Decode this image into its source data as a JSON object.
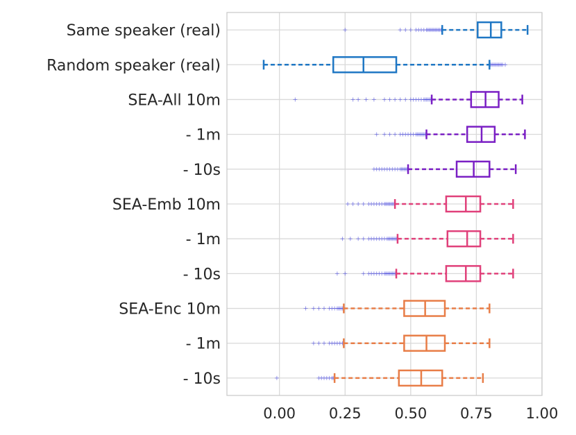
{
  "chart_data": {
    "type": "boxplot",
    "orientation": "horizontal",
    "title": "",
    "xlabel": "",
    "ylabel": "",
    "xlim": [
      -0.2,
      1.0
    ],
    "x_ticks": [
      0.0,
      0.25,
      0.5,
      0.75,
      1.0
    ],
    "x_tick_labels": [
      "0.00",
      "0.25",
      "0.50",
      "0.75",
      "1.00"
    ],
    "grid": true,
    "legend": "none",
    "series": [
      {
        "label": "Same speaker (real)",
        "color": "#1f77c4",
        "whisker_low": 0.62,
        "q1": 0.755,
        "median": 0.805,
        "q3": 0.845,
        "whisker_high": 0.945,
        "outliers": [
          0.25,
          0.46,
          0.48,
          0.5,
          0.52,
          0.53,
          0.54,
          0.55,
          0.56,
          0.565,
          0.57,
          0.575,
          0.58,
          0.585,
          0.59,
          0.595,
          0.6,
          0.605,
          0.61,
          0.615
        ]
      },
      {
        "label": "Random speaker (real)",
        "color": "#1f77c4",
        "whisker_low": -0.06,
        "q1": 0.205,
        "median": 0.32,
        "q3": 0.445,
        "whisker_high": 0.8,
        "outliers": [
          0.805,
          0.81,
          0.815,
          0.82,
          0.825,
          0.83,
          0.835,
          0.84,
          0.845,
          0.85,
          0.86
        ]
      },
      {
        "label": "SEA-All 10m",
        "color": "#7a1fc4",
        "whisker_low": 0.58,
        "q1": 0.73,
        "median": 0.785,
        "q3": 0.835,
        "whisker_high": 0.925,
        "outliers": [
          0.06,
          0.28,
          0.3,
          0.33,
          0.36,
          0.4,
          0.42,
          0.44,
          0.46,
          0.48,
          0.5,
          0.51,
          0.52,
          0.53,
          0.54,
          0.55,
          0.555,
          0.56,
          0.565,
          0.57,
          0.575
        ]
      },
      {
        "label": "-   1m",
        "color": "#7a1fc4",
        "whisker_low": 0.56,
        "q1": 0.715,
        "median": 0.77,
        "q3": 0.82,
        "whisker_high": 0.935,
        "outliers": [
          0.37,
          0.4,
          0.42,
          0.44,
          0.46,
          0.47,
          0.48,
          0.49,
          0.5,
          0.51,
          0.52,
          0.525,
          0.53,
          0.535,
          0.54,
          0.545,
          0.55,
          0.555
        ]
      },
      {
        "label": "-   10s",
        "color": "#7a1fc4",
        "whisker_low": 0.49,
        "q1": 0.675,
        "median": 0.74,
        "q3": 0.8,
        "whisker_high": 0.9,
        "outliers": [
          0.36,
          0.37,
          0.38,
          0.39,
          0.4,
          0.41,
          0.42,
          0.43,
          0.44,
          0.45,
          0.46,
          0.465,
          0.47,
          0.475,
          0.48,
          0.485
        ]
      },
      {
        "label": "SEA-Emb 10m",
        "color": "#e0407a",
        "whisker_low": 0.44,
        "q1": 0.635,
        "median": 0.71,
        "q3": 0.765,
        "whisker_high": 0.89,
        "outliers": [
          0.26,
          0.28,
          0.3,
          0.32,
          0.34,
          0.35,
          0.36,
          0.37,
          0.38,
          0.39,
          0.4,
          0.405,
          0.41,
          0.415,
          0.42,
          0.425,
          0.43,
          0.435
        ]
      },
      {
        "label": "-   1m",
        "color": "#e0407a",
        "whisker_low": 0.45,
        "q1": 0.64,
        "median": 0.715,
        "q3": 0.765,
        "whisker_high": 0.89,
        "outliers": [
          0.24,
          0.27,
          0.3,
          0.32,
          0.34,
          0.35,
          0.36,
          0.37,
          0.38,
          0.39,
          0.4,
          0.41,
          0.415,
          0.42,
          0.425,
          0.43,
          0.435,
          0.44,
          0.445
        ]
      },
      {
        "label": "-   10s",
        "color": "#e0407a",
        "whisker_low": 0.445,
        "q1": 0.635,
        "median": 0.71,
        "q3": 0.765,
        "whisker_high": 0.89,
        "outliers": [
          0.22,
          0.25,
          0.32,
          0.34,
          0.35,
          0.36,
          0.37,
          0.38,
          0.39,
          0.4,
          0.405,
          0.41,
          0.415,
          0.42,
          0.425,
          0.43,
          0.435,
          0.44
        ]
      },
      {
        "label": "SEA-Enc 10m",
        "color": "#e87d47",
        "whisker_low": 0.245,
        "q1": 0.475,
        "median": 0.555,
        "q3": 0.63,
        "whisker_high": 0.8,
        "outliers": [
          0.1,
          0.13,
          0.15,
          0.17,
          0.19,
          0.2,
          0.21,
          0.22,
          0.225,
          0.23,
          0.235,
          0.24
        ]
      },
      {
        "label": "-   1m",
        "color": "#e87d47",
        "whisker_low": 0.245,
        "q1": 0.475,
        "median": 0.56,
        "q3": 0.63,
        "whisker_high": 0.8,
        "outliers": [
          0.13,
          0.15,
          0.17,
          0.19,
          0.2,
          0.21,
          0.22,
          0.23,
          0.24
        ]
      },
      {
        "label": "-   10s",
        "color": "#e87d47",
        "whisker_low": 0.21,
        "q1": 0.455,
        "median": 0.54,
        "q3": 0.62,
        "whisker_high": 0.775,
        "outliers": [
          -0.01,
          0.15,
          0.16,
          0.17,
          0.18,
          0.19,
          0.2,
          0.205
        ]
      }
    ]
  }
}
